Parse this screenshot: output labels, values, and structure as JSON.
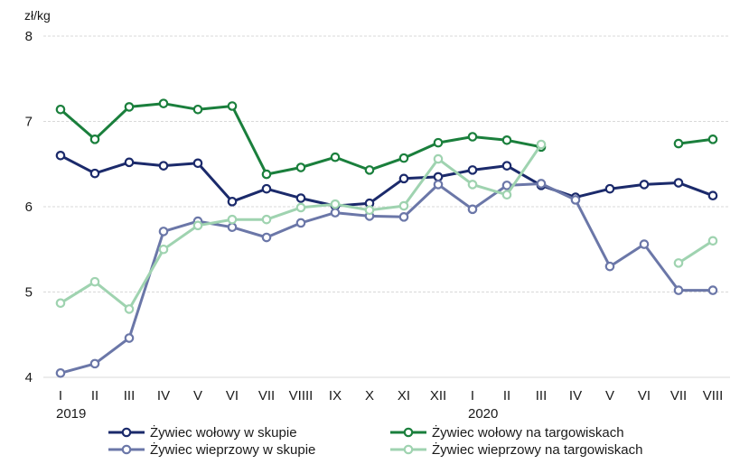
{
  "chart_data": {
    "type": "line",
    "unit_label": "zł/kg",
    "ylim": [
      4,
      8
    ],
    "yticks": [
      "4",
      "5",
      "6",
      "7",
      "8"
    ],
    "categories": [
      "I",
      "II",
      "III",
      "IV",
      "V",
      "VI",
      "VII",
      "VIIII",
      "IX",
      "X",
      "XI",
      "XII",
      "I",
      "II",
      "III",
      "IV",
      "V",
      "VI",
      "VII",
      "VIII"
    ],
    "year_labels": [
      {
        "index": 0,
        "label": "2019"
      },
      {
        "index": 12,
        "label": "2020"
      }
    ],
    "grid": true,
    "legend_position": "bottom",
    "series": [
      {
        "name": "Żywiec wołowy w skupie",
        "color": "#1b2a6b",
        "values": [
          6.6,
          6.39,
          6.52,
          6.48,
          6.51,
          6.06,
          6.21,
          6.1,
          6.01,
          6.04,
          6.33,
          6.35,
          6.43,
          6.48,
          6.25,
          6.11,
          6.21,
          6.26,
          6.28,
          6.13
        ]
      },
      {
        "name": "Żywiec wołowy na targowiskach",
        "color": "#1a7f3c",
        "values": [
          7.14,
          6.79,
          7.17,
          7.21,
          7.14,
          7.18,
          6.38,
          6.46,
          6.58,
          6.43,
          6.57,
          6.75,
          6.82,
          6.78,
          6.7,
          null,
          null,
          null,
          6.74,
          6.79
        ]
      },
      {
        "name": "Żywiec wieprzowy w skupie",
        "color": "#6b77a8",
        "values": [
          4.05,
          4.16,
          4.46,
          5.71,
          5.83,
          5.76,
          5.64,
          5.81,
          5.93,
          5.89,
          5.88,
          6.26,
          5.97,
          6.25,
          6.27,
          6.08,
          5.3,
          5.56,
          5.02,
          5.02
        ]
      },
      {
        "name": "Żywiec wieprzowy na targowiskach",
        "color": "#9fd3b0",
        "values": [
          4.87,
          5.12,
          4.8,
          5.5,
          5.78,
          5.85,
          5.85,
          5.99,
          6.03,
          5.96,
          6.01,
          6.56,
          6.26,
          6.14,
          6.73,
          null,
          null,
          null,
          5.34,
          5.6
        ]
      }
    ]
  }
}
